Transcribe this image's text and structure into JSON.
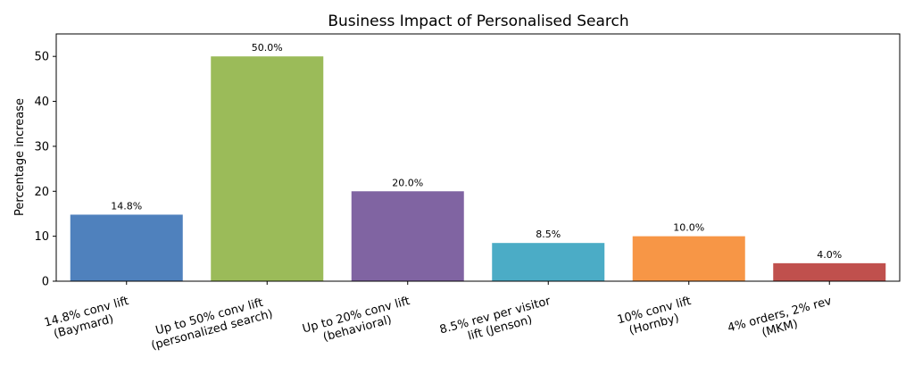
{
  "chart_data": {
    "type": "bar",
    "title": "Business Impact of Personalised Search",
    "xlabel": "",
    "ylabel": "Percentage increase",
    "ylim": [
      0,
      55
    ],
    "yticks": [
      0,
      10,
      20,
      30,
      40,
      50
    ],
    "grid": false,
    "categories": [
      [
        "14.8% conv lift",
        "(Baymard)"
      ],
      [
        "Up to 50% conv lift",
        "(personalized search)"
      ],
      [
        "Up to 20% conv lift",
        "(behavioral)"
      ],
      [
        "8.5% rev per visitor",
        "lift (Jenson)"
      ],
      [
        "10% conv lift",
        "(Hornby)"
      ],
      [
        "4% orders, 2% rev",
        "(MKM)"
      ]
    ],
    "values": [
      14.8,
      50.0,
      20.0,
      8.5,
      10.0,
      4.0
    ],
    "data_labels": [
      "14.8%",
      "50.0%",
      "20.0%",
      "8.5%",
      "10.0%",
      "4.0%"
    ],
    "colors": [
      "#4f81bd",
      "#9bbb59",
      "#8064a2",
      "#4bacc6",
      "#f79646",
      "#c0504d"
    ]
  }
}
